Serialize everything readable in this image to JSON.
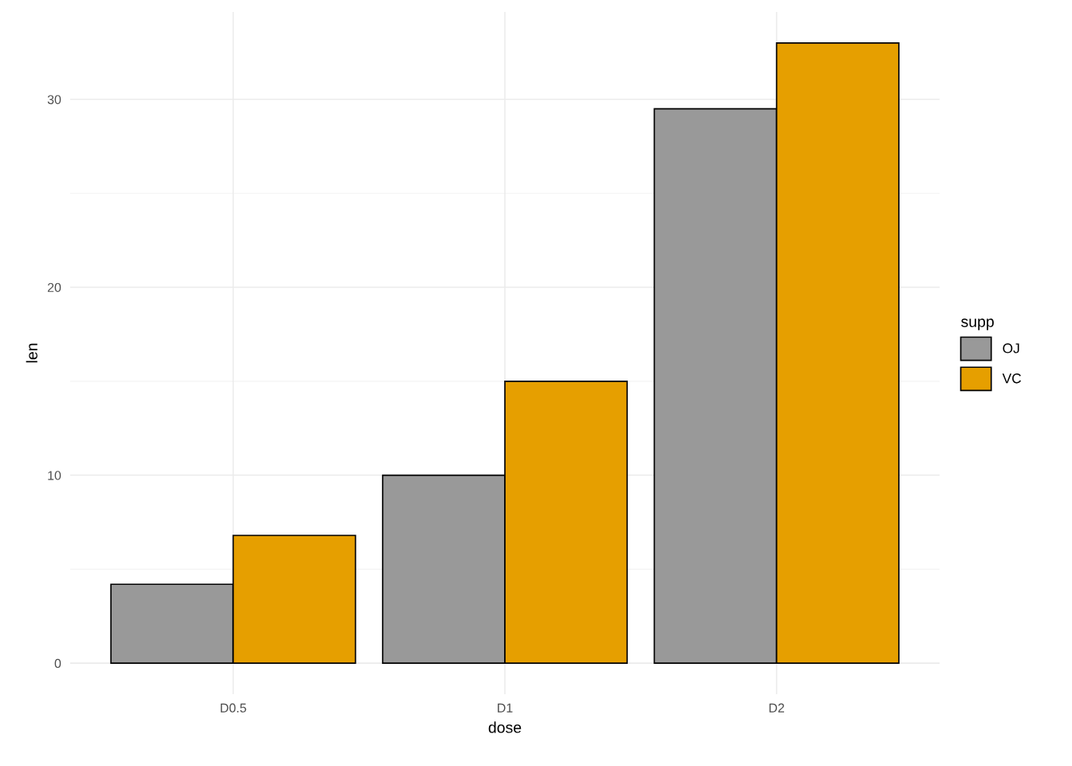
{
  "chart_data": {
    "type": "bar",
    "xlabel": "dose",
    "ylabel": "len",
    "legend_title": "supp",
    "categories": [
      "D0.5",
      "D1",
      "D2"
    ],
    "series": [
      {
        "name": "OJ",
        "color": "#999999",
        "values": [
          4.2,
          10.0,
          29.5
        ]
      },
      {
        "name": "VC",
        "color": "#e69f00",
        "values": [
          6.8,
          15.0,
          33.0
        ]
      }
    ],
    "ylim": [
      -1.65,
      34.65
    ],
    "yticks": [
      0,
      10,
      20,
      30
    ],
    "grid": true,
    "legend": "right"
  }
}
